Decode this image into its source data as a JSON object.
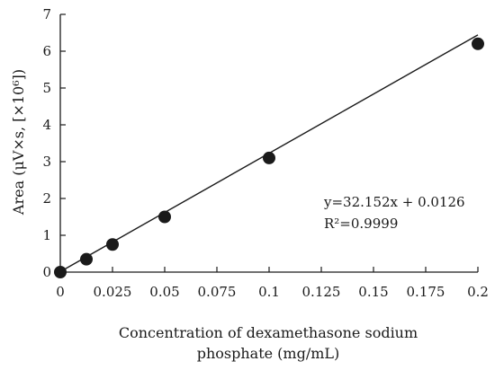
{
  "chart_data": {
    "type": "scatter",
    "title": "",
    "xlabel_lines": [
      "Concentration of dexamethasone sodium",
      "phosphate (mg/mL)"
    ],
    "ylabel": "Area (μV×s, [×10⁶])",
    "xlim": [
      0,
      0.2
    ],
    "ylim": [
      0,
      7
    ],
    "xticks": [
      0,
      0.025,
      0.05,
      0.075,
      0.1,
      0.125,
      0.15,
      0.175,
      0.2
    ],
    "xtick_labels": [
      "0",
      "0.025",
      "0.05",
      "0.075",
      "0.1",
      "0.125",
      "0.15",
      "0.175",
      "0.2"
    ],
    "yticks": [
      0,
      1,
      2,
      3,
      4,
      5,
      6,
      7
    ],
    "ytick_labels": [
      "0",
      "1",
      "2",
      "3",
      "4",
      "5",
      "6",
      "7"
    ],
    "grid": false,
    "legend": "none",
    "marker_color": "#1a1a1a",
    "line_color": "#1a1a1a",
    "points": [
      {
        "x": 0,
        "y": 0.0
      },
      {
        "x": 0.0125,
        "y": 0.35
      },
      {
        "x": 0.025,
        "y": 0.75
      },
      {
        "x": 0.05,
        "y": 1.5
      },
      {
        "x": 0.1,
        "y": 3.1
      },
      {
        "x": 0.2,
        "y": 6.2
      }
    ],
    "fit": {
      "slope": 32.152,
      "intercept": 0.0126,
      "equation": "y=32.152x + 0.0126",
      "r_squared": "R²=0.9999"
    }
  }
}
